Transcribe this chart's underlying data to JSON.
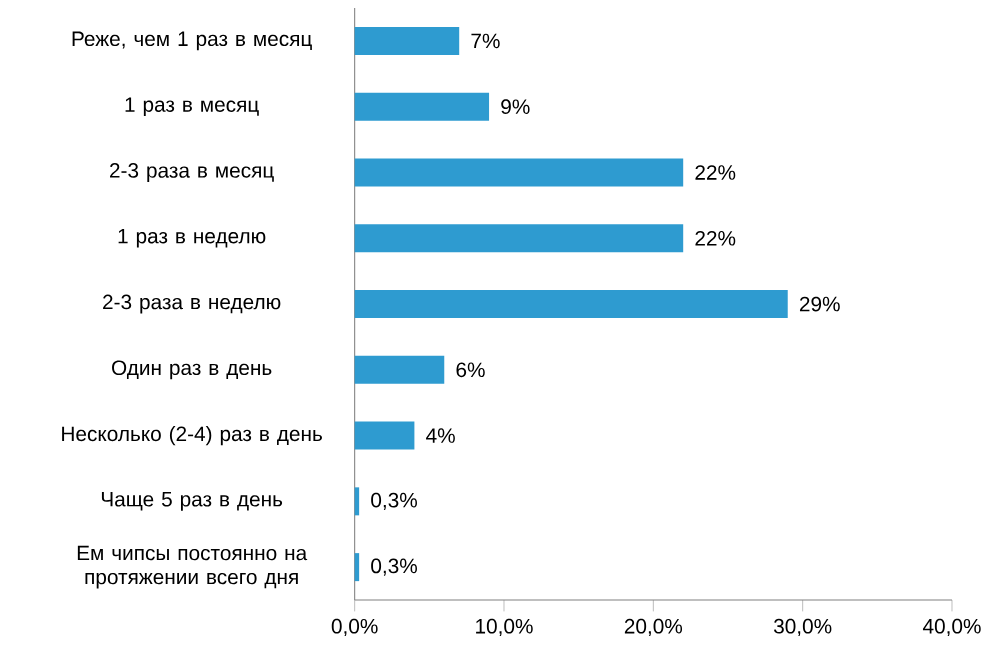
{
  "chart_data": {
    "type": "bar",
    "orientation": "horizontal",
    "categories": [
      "Реже, чем 1 раз в месяц",
      "1 раз в месяц",
      "2-3 раза в месяц",
      "1 раз в неделю",
      "2-3 раза в неделю",
      "Один раз в день",
      "Несколько (2-4) раз в день",
      "Чаще 5 раз в день",
      "Ем чипсы постоянно на протяжении всего дня"
    ],
    "values": [
      7,
      9,
      22,
      22,
      29,
      6,
      4,
      0.3,
      0.3
    ],
    "value_labels": [
      "7%",
      "9%",
      "22%",
      "22%",
      "29%",
      "6%",
      "4%",
      "0,3%",
      "0,3%"
    ],
    "color": "#2e9bd0",
    "xlim": [
      0,
      40
    ],
    "xticks": [
      {
        "value": 0,
        "label": "0,0%"
      },
      {
        "value": 10,
        "label": "10,0%"
      },
      {
        "value": 20,
        "label": "20,0%"
      },
      {
        "value": 30,
        "label": "30,0%"
      },
      {
        "value": 40,
        "label": "40,0%"
      }
    ]
  }
}
